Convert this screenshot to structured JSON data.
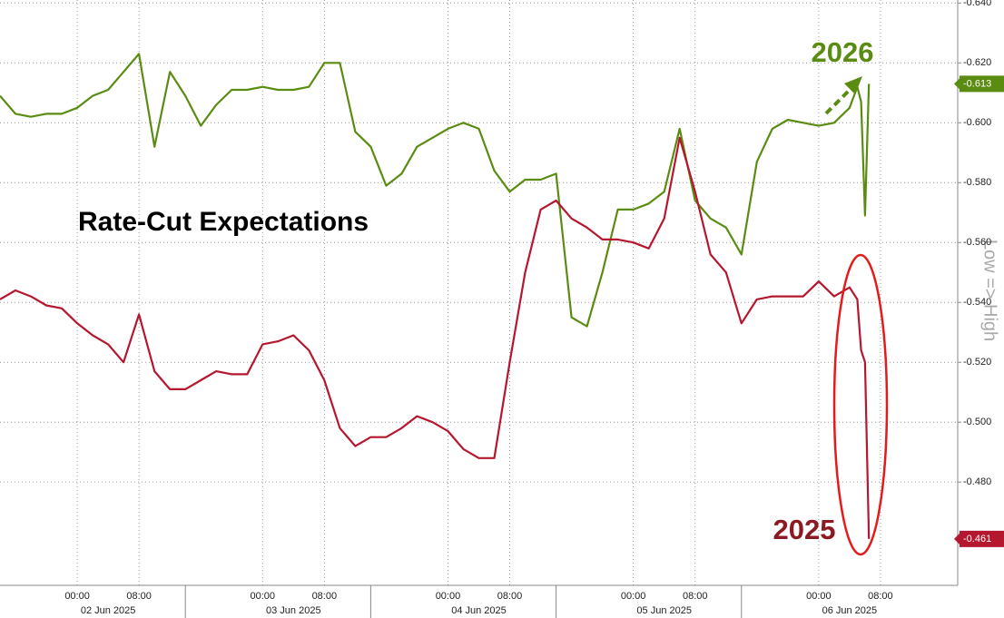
{
  "chart_data": {
    "type": "line",
    "title": "Rate-Cut Expectations",
    "axis_note": "Low => High",
    "xlim": [
      "01 Jun 2025 14:00",
      "06 Jun 2025 18:00"
    ],
    "ylim": [
      -0.4455,
      -0.641
    ],
    "yticks": [
      {
        "value": -0.64,
        "label": "-0.640"
      },
      {
        "value": -0.62,
        "label": "-0.620"
      },
      {
        "value": -0.6,
        "label": "-0.600"
      },
      {
        "value": -0.58,
        "label": "-0.580"
      },
      {
        "value": -0.56,
        "label": "-0.560"
      },
      {
        "value": -0.54,
        "label": "-0.540"
      },
      {
        "value": -0.52,
        "label": "-0.520"
      },
      {
        "value": -0.5,
        "label": "-0.500"
      },
      {
        "value": -0.48,
        "label": "-0.480"
      }
    ],
    "xticks": [
      {
        "value": "02 Jun 2025 00:00",
        "label": "00:00"
      },
      {
        "value": "02 Jun 2025 08:00",
        "label": "08:00"
      },
      {
        "value": "03 Jun 2025 00:00",
        "label": "00:00"
      },
      {
        "value": "03 Jun 2025 08:00",
        "label": "08:00"
      },
      {
        "value": "04 Jun 2025 00:00",
        "label": "00:00"
      },
      {
        "value": "04 Jun 2025 08:00",
        "label": "08:00"
      },
      {
        "value": "05 Jun 2025 00:00",
        "label": "00:00"
      },
      {
        "value": "05 Jun 2025 08:00",
        "label": "08:00"
      },
      {
        "value": "06 Jun 2025 00:00",
        "label": "00:00"
      },
      {
        "value": "06 Jun 2025 08:00",
        "label": "08:00"
      }
    ],
    "date_labels": [
      {
        "value": "02 Jun 2025 04:00",
        "label": "02 Jun 2025"
      },
      {
        "value": "03 Jun 2025 04:00",
        "label": "03 Jun 2025"
      },
      {
        "value": "04 Jun 2025 04:00",
        "label": "04 Jun 2025"
      },
      {
        "value": "05 Jun 2025 04:00",
        "label": "05 Jun 2025"
      },
      {
        "value": "06 Jun 2025 04:00",
        "label": "06 Jun 2025"
      }
    ],
    "session_breaks": [
      "02 Jun 2025 14:00",
      "03 Jun 2025 14:00",
      "04 Jun 2025 14:00",
      "05 Jun 2025 14:00"
    ],
    "grid": true,
    "x": [
      "01 Jun 2025 14:00",
      "01 Jun 2025 16:00",
      "01 Jun 2025 18:00",
      "01 Jun 2025 20:00",
      "01 Jun 2025 22:00",
      "02 Jun 2025 00:00",
      "02 Jun 2025 02:00",
      "02 Jun 2025 04:00",
      "02 Jun 2025 06:00",
      "02 Jun 2025 08:00",
      "02 Jun 2025 10:00",
      "02 Jun 2025 12:00",
      "02 Jun 2025 14:00",
      "02 Jun 2025 16:00",
      "02 Jun 2025 18:00",
      "02 Jun 2025 20:00",
      "02 Jun 2025 22:00",
      "03 Jun 2025 00:00",
      "03 Jun 2025 02:00",
      "03 Jun 2025 04:00",
      "03 Jun 2025 06:00",
      "03 Jun 2025 08:00",
      "03 Jun 2025 10:00",
      "03 Jun 2025 12:00",
      "03 Jun 2025 14:00",
      "03 Jun 2025 16:00",
      "03 Jun 2025 18:00",
      "03 Jun 2025 20:00",
      "03 Jun 2025 22:00",
      "04 Jun 2025 00:00",
      "04 Jun 2025 02:00",
      "04 Jun 2025 04:00",
      "04 Jun 2025 06:00",
      "04 Jun 2025 08:00",
      "04 Jun 2025 10:00",
      "04 Jun 2025 12:00",
      "04 Jun 2025 14:00",
      "04 Jun 2025 16:00",
      "04 Jun 2025 18:00",
      "04 Jun 2025 20:00",
      "04 Jun 2025 22:00",
      "05 Jun 2025 00:00",
      "05 Jun 2025 02:00",
      "05 Jun 2025 04:00",
      "05 Jun 2025 06:00",
      "05 Jun 2025 08:00",
      "05 Jun 2025 10:00",
      "05 Jun 2025 12:00",
      "05 Jun 2025 14:00",
      "05 Jun 2025 16:00",
      "05 Jun 2025 18:00",
      "05 Jun 2025 20:00",
      "05 Jun 2025 22:00",
      "06 Jun 2025 00:00",
      "06 Jun 2025 02:00",
      "06 Jun 2025 04:00",
      "06 Jun 2025 05:00",
      "06 Jun 2025 05:30",
      "06 Jun 2025 06:00",
      "06 Jun 2025 06:30"
    ],
    "series": [
      {
        "name": "2026",
        "color": "#5b8c12",
        "end_label": "-0.613",
        "values": [
          -0.609,
          -0.603,
          -0.602,
          -0.603,
          -0.603,
          -0.605,
          -0.609,
          -0.611,
          -0.617,
          -0.623,
          -0.592,
          -0.617,
          -0.609,
          -0.599,
          -0.606,
          -0.611,
          -0.611,
          -0.612,
          -0.611,
          -0.611,
          -0.612,
          -0.62,
          -0.62,
          -0.597,
          -0.592,
          -0.579,
          -0.583,
          -0.592,
          -0.595,
          -0.598,
          -0.6,
          -0.598,
          -0.584,
          -0.577,
          -0.581,
          -0.581,
          -0.583,
          -0.535,
          -0.532,
          -0.55,
          -0.571,
          -0.571,
          -0.573,
          -0.577,
          -0.598,
          -0.574,
          -0.568,
          -0.565,
          -0.556,
          -0.587,
          -0.598,
          -0.601,
          -0.6,
          -0.599,
          -0.6,
          -0.605,
          -0.612,
          -0.607,
          -0.569,
          -0.613
        ]
      },
      {
        "name": "2025",
        "color": "#b5172f",
        "end_label": "-0.461",
        "values": [
          -0.541,
          -0.544,
          -0.542,
          -0.539,
          -0.538,
          -0.533,
          -0.529,
          -0.526,
          -0.52,
          -0.536,
          -0.517,
          -0.511,
          -0.511,
          -0.514,
          -0.517,
          -0.516,
          -0.516,
          -0.526,
          -0.527,
          -0.529,
          -0.524,
          -0.514,
          -0.498,
          -0.492,
          -0.495,
          -0.495,
          -0.498,
          -0.502,
          -0.5,
          -0.497,
          -0.491,
          -0.488,
          -0.488,
          -0.52,
          -0.55,
          -0.571,
          -0.574,
          -0.568,
          -0.565,
          -0.561,
          -0.561,
          -0.56,
          -0.558,
          -0.568,
          -0.595,
          -0.577,
          -0.556,
          -0.55,
          -0.533,
          -0.541,
          -0.542,
          -0.542,
          -0.542,
          -0.547,
          -0.542,
          -0.545,
          -0.541,
          -0.524,
          -0.52,
          -0.461
        ]
      }
    ]
  }
}
